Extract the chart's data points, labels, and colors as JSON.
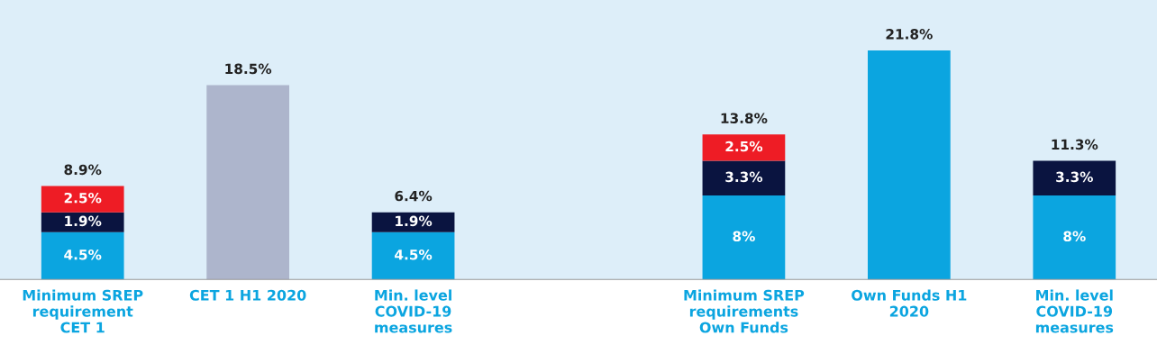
{
  "chart_data": {
    "type": "bar",
    "stacked": true,
    "tick_labels": "x",
    "grid": false,
    "legend": false,
    "categories": [
      "Minimum SREP\nrequirement\nCET 1",
      "CET 1 H1 2020",
      "Min. level\nCOVID-19\nmeasures",
      null,
      "Minimum SREP\nrequirements\nOwn Funds",
      "Own Funds H1\n2020",
      "Min. level\nCOVID-19\nmeasures"
    ],
    "series": [
      {
        "colors": [
          "#0ba5e0",
          "#adb5cc",
          "#0ba5e0",
          "#0ba5e0",
          "#0ba5e0",
          "#0ba5e0",
          "#0ba5e0"
        ],
        "values": [
          4.5,
          18.5,
          4.5,
          null,
          8,
          21.8,
          8
        ],
        "value_labels": [
          "4.5%",
          null,
          "4.5%",
          null,
          "8%",
          null,
          "8%"
        ]
      },
      {
        "color": "#0a1440",
        "values": [
          1.9,
          null,
          1.9,
          null,
          3.3,
          null,
          3.3
        ],
        "value_labels": [
          "1.9%",
          null,
          "1.9%",
          null,
          "3.3%",
          null,
          "3.3%"
        ]
      },
      {
        "color": "#ee1c25",
        "values": [
          2.5,
          null,
          null,
          null,
          2.5,
          null,
          null
        ],
        "value_labels": [
          "2.5%",
          null,
          null,
          null,
          "2.5%",
          null,
          null
        ]
      }
    ],
    "totals": [
      "8.9%",
      "18.5%",
      "6.4%",
      null,
      "13.8%",
      "21.8%",
      "11.3%"
    ]
  }
}
